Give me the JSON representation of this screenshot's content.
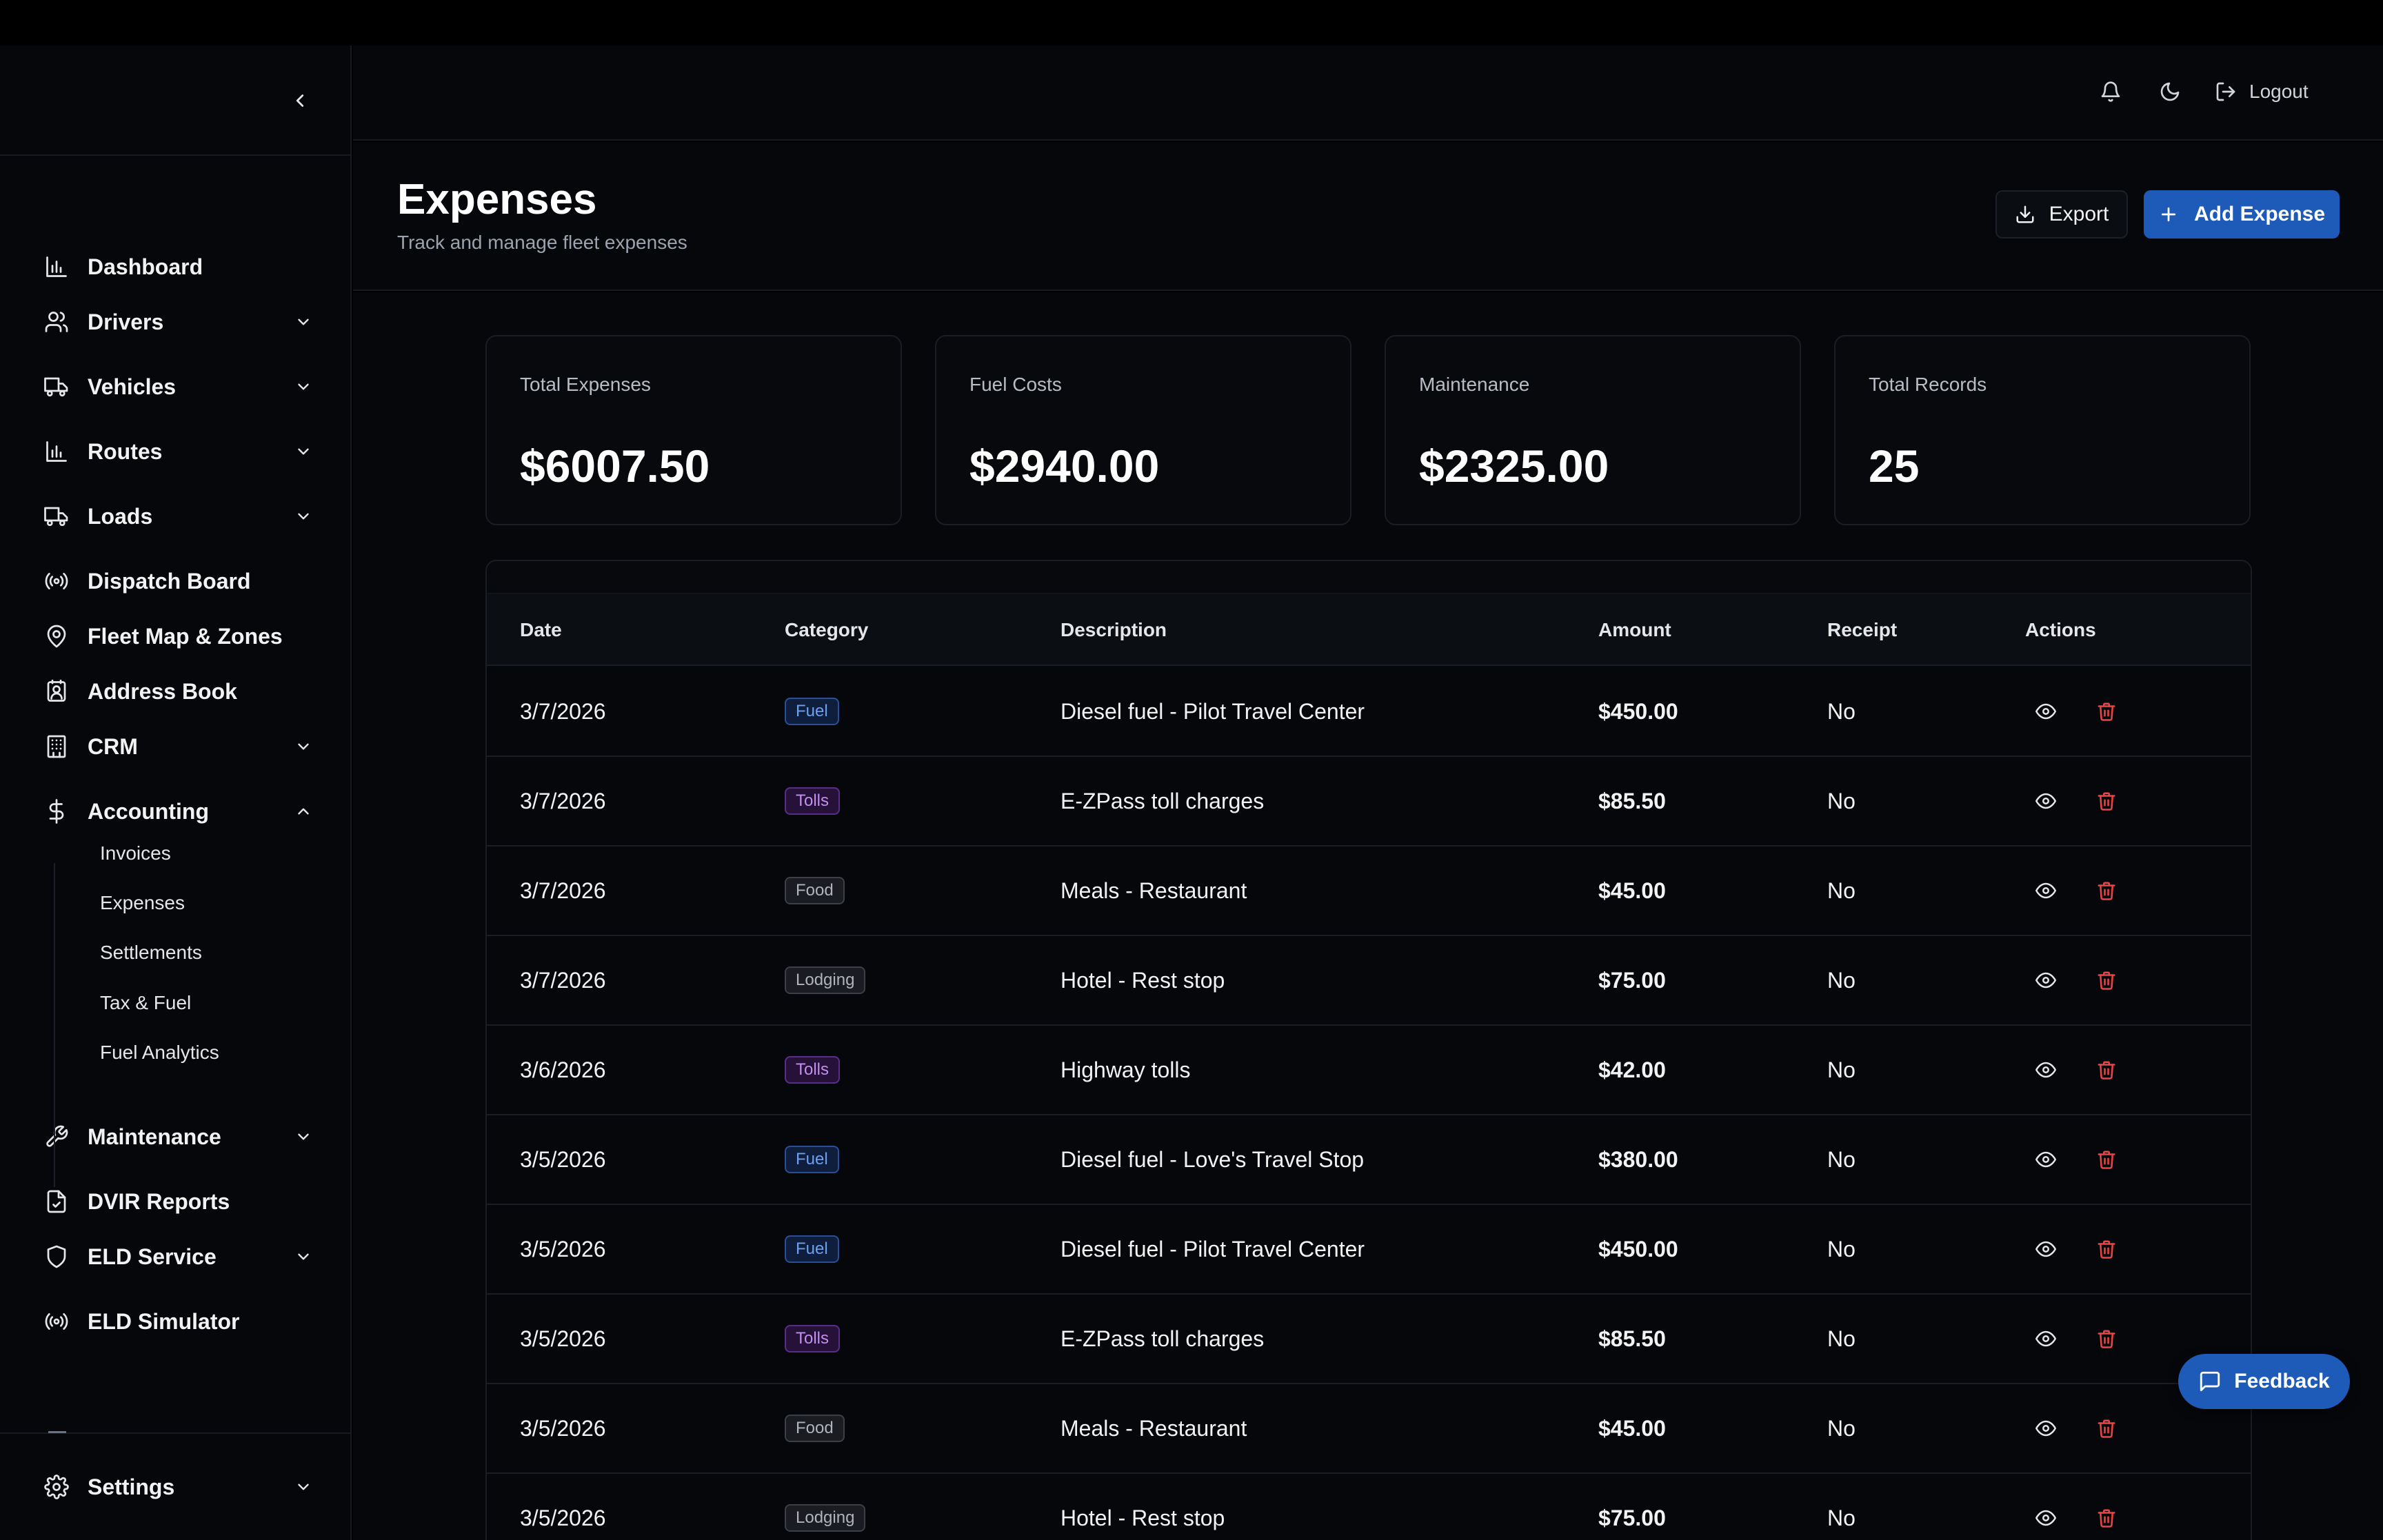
{
  "colors": {
    "accent": "#1e5bb8",
    "delete": "#ef4444",
    "background": "#05070b"
  },
  "sidebar": {
    "collapse_icon": "chevron-left-icon",
    "items": [
      {
        "label": "Dashboard",
        "icon": "bar-chart-icon",
        "expandable": false
      },
      {
        "label": "Drivers",
        "icon": "users-icon",
        "expandable": true
      },
      {
        "label": "Vehicles",
        "icon": "truck-icon",
        "expandable": true
      },
      {
        "label": "Routes",
        "icon": "bar-chart-icon",
        "expandable": true
      },
      {
        "label": "Loads",
        "icon": "truck-icon",
        "expandable": true
      },
      {
        "label": "Dispatch Board",
        "icon": "radio-icon",
        "expandable": false
      },
      {
        "label": "Fleet Map & Zones",
        "icon": "map-pin-icon",
        "expandable": false
      },
      {
        "label": "Address Book",
        "icon": "contact-icon",
        "expandable": false
      },
      {
        "label": "CRM",
        "icon": "building-icon",
        "expandable": true
      },
      {
        "label": "Accounting",
        "icon": "dollar-icon",
        "expandable": true,
        "expanded": true
      },
      {
        "label": "Maintenance",
        "icon": "wrench-icon",
        "expandable": true
      },
      {
        "label": "DVIR Reports",
        "icon": "file-check-icon",
        "expandable": false
      },
      {
        "label": "ELD Service",
        "icon": "shield-icon",
        "expandable": true
      },
      {
        "label": "ELD Simulator",
        "icon": "radio-icon",
        "expandable": false
      }
    ],
    "accounting_sub": [
      "Invoices",
      "Expenses",
      "Settlements",
      "Tax & Fuel",
      "Fuel Analytics"
    ],
    "settings": {
      "label": "Settings",
      "icon": "gear-icon"
    }
  },
  "header": {
    "notifications_icon": "bell-icon",
    "theme_icon": "moon-icon",
    "logout_label": "Logout"
  },
  "page": {
    "title": "Expenses",
    "subtitle": "Track and manage fleet expenses",
    "export_label": "Export",
    "add_label": "Add Expense"
  },
  "stats": [
    {
      "label": "Total Expenses",
      "value": "$6007.50"
    },
    {
      "label": "Fuel Costs",
      "value": "$2940.00"
    },
    {
      "label": "Maintenance",
      "value": "$2325.00"
    },
    {
      "label": "Total Records",
      "value": "25"
    }
  ],
  "table": {
    "columns": [
      "Date",
      "Category",
      "Description",
      "Amount",
      "Receipt",
      "Actions"
    ],
    "rows": [
      {
        "date": "3/7/2026",
        "category": "Fuel",
        "description": "Diesel fuel - Pilot Travel Center",
        "amount": "$450.00",
        "receipt": "No"
      },
      {
        "date": "3/7/2026",
        "category": "Tolls",
        "description": "E-ZPass toll charges",
        "amount": "$85.50",
        "receipt": "No"
      },
      {
        "date": "3/7/2026",
        "category": "Food",
        "description": "Meals - Restaurant",
        "amount": "$45.00",
        "receipt": "No"
      },
      {
        "date": "3/7/2026",
        "category": "Lodging",
        "description": "Hotel - Rest stop",
        "amount": "$75.00",
        "receipt": "No"
      },
      {
        "date": "3/6/2026",
        "category": "Tolls",
        "description": "Highway tolls",
        "amount": "$42.00",
        "receipt": "No"
      },
      {
        "date": "3/5/2026",
        "category": "Fuel",
        "description": "Diesel fuel - Love's Travel Stop",
        "amount": "$380.00",
        "receipt": "No"
      },
      {
        "date": "3/5/2026",
        "category": "Fuel",
        "description": "Diesel fuel - Pilot Travel Center",
        "amount": "$450.00",
        "receipt": "No"
      },
      {
        "date": "3/5/2026",
        "category": "Tolls",
        "description": "E-ZPass toll charges",
        "amount": "$85.50",
        "receipt": "No"
      },
      {
        "date": "3/5/2026",
        "category": "Food",
        "description": "Meals - Restaurant",
        "amount": "$45.00",
        "receipt": "No"
      },
      {
        "date": "3/5/2026",
        "category": "Lodging",
        "description": "Hotel - Rest stop",
        "amount": "$75.00",
        "receipt": "No"
      }
    ],
    "row_actions": [
      "eye-icon",
      "trash-icon"
    ]
  },
  "feedback": {
    "label": "Feedback",
    "icon": "message-square-icon"
  }
}
